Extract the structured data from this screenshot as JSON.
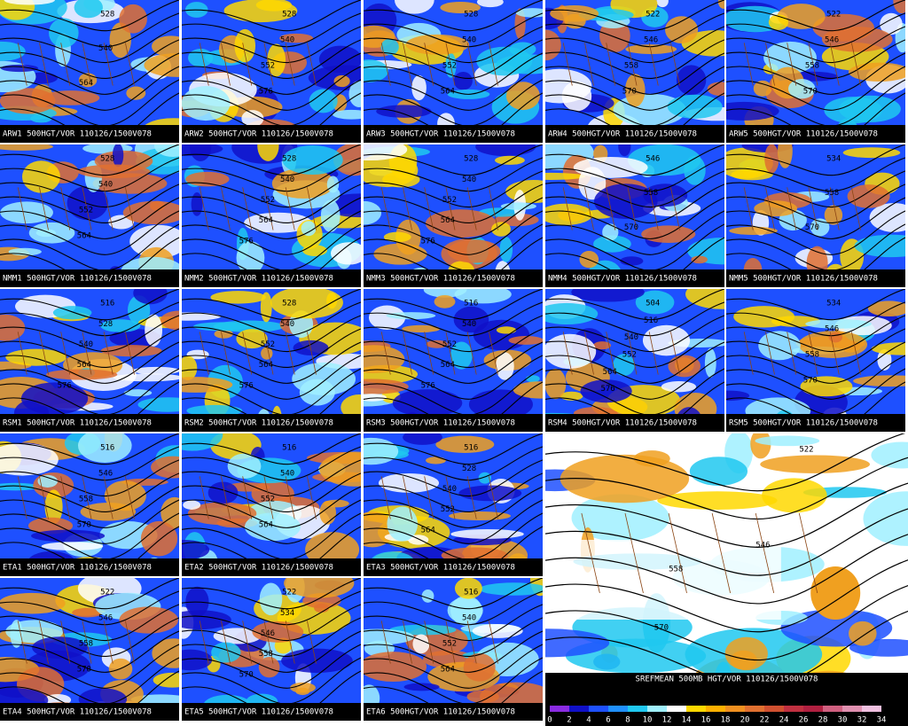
{
  "panels": [
    {
      "caption": "ARW1 500HGT/VOR 110126/1500V078",
      "labels": [
        "528",
        "540",
        "564"
      ]
    },
    {
      "caption": "ARW2 500HGT/VOR 110126/1500V078",
      "labels": [
        "528",
        "540",
        "552",
        "576"
      ]
    },
    {
      "caption": "ARW3 500HGT/VOR 110126/1500V078",
      "labels": [
        "528",
        "540",
        "552",
        "564"
      ]
    },
    {
      "caption": "ARW4 500HGT/VOR 110126/1500V078",
      "labels": [
        "522",
        "546",
        "558",
        "570"
      ]
    },
    {
      "caption": "ARW5 500HGT/VOR 110126/1500V078",
      "labels": [
        "522",
        "546",
        "558",
        "570"
      ]
    },
    {
      "caption": "NMM1 500HGT/VOR 110126/1500V078",
      "labels": [
        "528",
        "540",
        "552",
        "564"
      ]
    },
    {
      "caption": "NMM2 500HGT/VOR 110126/1500V078",
      "labels": [
        "528",
        "540",
        "552",
        "564",
        "576"
      ]
    },
    {
      "caption": "NMM3 500HGT/VOR 110126/1500V078",
      "labels": [
        "528",
        "540",
        "552",
        "564",
        "576"
      ]
    },
    {
      "caption": "NMM4 500HGT/VOR 110126/1500V078",
      "labels": [
        "546",
        "558",
        "570"
      ]
    },
    {
      "caption": "NMM5 500HGT/VOR 110126/1500V078",
      "labels": [
        "534",
        "558",
        "570"
      ]
    },
    {
      "caption": "RSM1 500HGT/VOR 110126/1500V078",
      "labels": [
        "516",
        "528",
        "540",
        "564",
        "576"
      ]
    },
    {
      "caption": "RSM2 500HGT/VOR 110126/1500V078",
      "labels": [
        "528",
        "540",
        "552",
        "564",
        "576"
      ]
    },
    {
      "caption": "RSM3 500HGT/VOR 110126/1500V078",
      "labels": [
        "516",
        "540",
        "552",
        "564",
        "576"
      ]
    },
    {
      "caption": "RSM4 500HGT/VOR 110126/1500V078",
      "labels": [
        "504",
        "516",
        "540",
        "552",
        "564",
        "576"
      ]
    },
    {
      "caption": "RSM5 500HGT/VOR 110126/1500V078",
      "labels": [
        "534",
        "546",
        "558",
        "570"
      ]
    },
    {
      "caption": "ETA1 500HGT/VOR 110126/1500V078",
      "labels": [
        "516",
        "546",
        "558",
        "570"
      ]
    },
    {
      "caption": "ETA2 500HGT/VOR 110126/1500V078",
      "labels": [
        "516",
        "540",
        "552",
        "564"
      ]
    },
    {
      "caption": "ETA3 500HGT/VOR 110126/1500V078",
      "labels": [
        "516",
        "528",
        "540",
        "552",
        "564"
      ]
    },
    {
      "caption": "ETA4 500HGT/VOR 110126/1500V078",
      "labels": [
        "522",
        "546",
        "558",
        "570"
      ]
    },
    {
      "caption": "ETA5 500HGT/VOR 110126/1500V078",
      "labels": [
        "522",
        "534",
        "546",
        "558",
        "570"
      ]
    },
    {
      "caption": "ETA6 500HGT/VOR 110126/1500V078",
      "labels": [
        "516",
        "540",
        "552",
        "564"
      ]
    }
  ],
  "main": {
    "caption": "SREFMEAN 500MB HGT/VOR 110126/1500V078",
    "labels": [
      "522",
      "546",
      "558",
      "570"
    ]
  },
  "colorbar": {
    "labels": [
      "0",
      "2",
      "4",
      "6",
      "8",
      "10",
      "12",
      "14",
      "16",
      "18",
      "20",
      "22",
      "24",
      "26",
      "28",
      "30",
      "32",
      "34"
    ],
    "colors": [
      "#8b2be2",
      "#1010c8",
      "#1e50ff",
      "#2090ff",
      "#20c8f0",
      "#a0f0ff",
      "#ffffff",
      "#ffd800",
      "#ffb000",
      "#f09020",
      "#e07030",
      "#d05030",
      "#c03040",
      "#b02040",
      "#d06080",
      "#e090b0",
      "#f0c0e0"
    ]
  }
}
